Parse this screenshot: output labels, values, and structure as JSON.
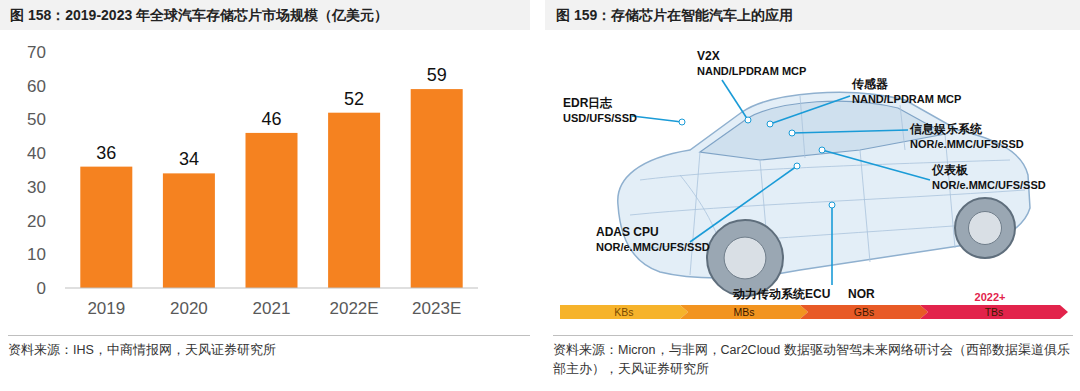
{
  "chart_data": {
    "type": "bar",
    "title": "图 158：2019-2023 年全球汽车存储芯片市场规模（亿美元）",
    "categories": [
      "2019",
      "2020",
      "2021",
      "2022E",
      "2023E"
    ],
    "values": [
      36,
      34,
      46,
      52,
      59
    ],
    "color": "#f58220",
    "ylim": [
      0,
      70
    ],
    "yticks": [
      0,
      10,
      20,
      30,
      40,
      50,
      60,
      70
    ],
    "grid": false,
    "data_labels": true,
    "source": "资料来源：IHS，中商情报网，天风证券研究所"
  },
  "diagram": {
    "title": "图 159：存储芯片在智能汽车上的应用",
    "labels": [
      {
        "name": "V2X",
        "memory": "NAND/LPDRAM MCP"
      },
      {
        "name": "传感器",
        "memory": "NAND/LPDRAM MCP"
      },
      {
        "name": "EDR日志",
        "memory": "USD/UFS/SSD"
      },
      {
        "name": "信息娱乐系统",
        "memory": "NOR/e.MMC/UFS/SSD"
      },
      {
        "name": "仪表板",
        "memory": "NOR/e.MMC/UFS/SSD"
      },
      {
        "name": "ADAS CPU",
        "memory": "NOR/e.MMC/UFS/SSD"
      },
      {
        "name": "动力传动系统ECU",
        "memory": "NOR"
      }
    ],
    "scale": {
      "stages": [
        "KBs",
        "MBs",
        "GBs",
        "TBs"
      ],
      "colors": [
        "#f6b32b",
        "#f29420",
        "#e85a26",
        "#e2234b"
      ],
      "note": "2022+"
    },
    "source": "资料来源：Micron，与非网，Car2Cloud 数据驱动智驾未来网络研讨会（西部数据渠道俱乐部主办），天风证券研究所"
  }
}
